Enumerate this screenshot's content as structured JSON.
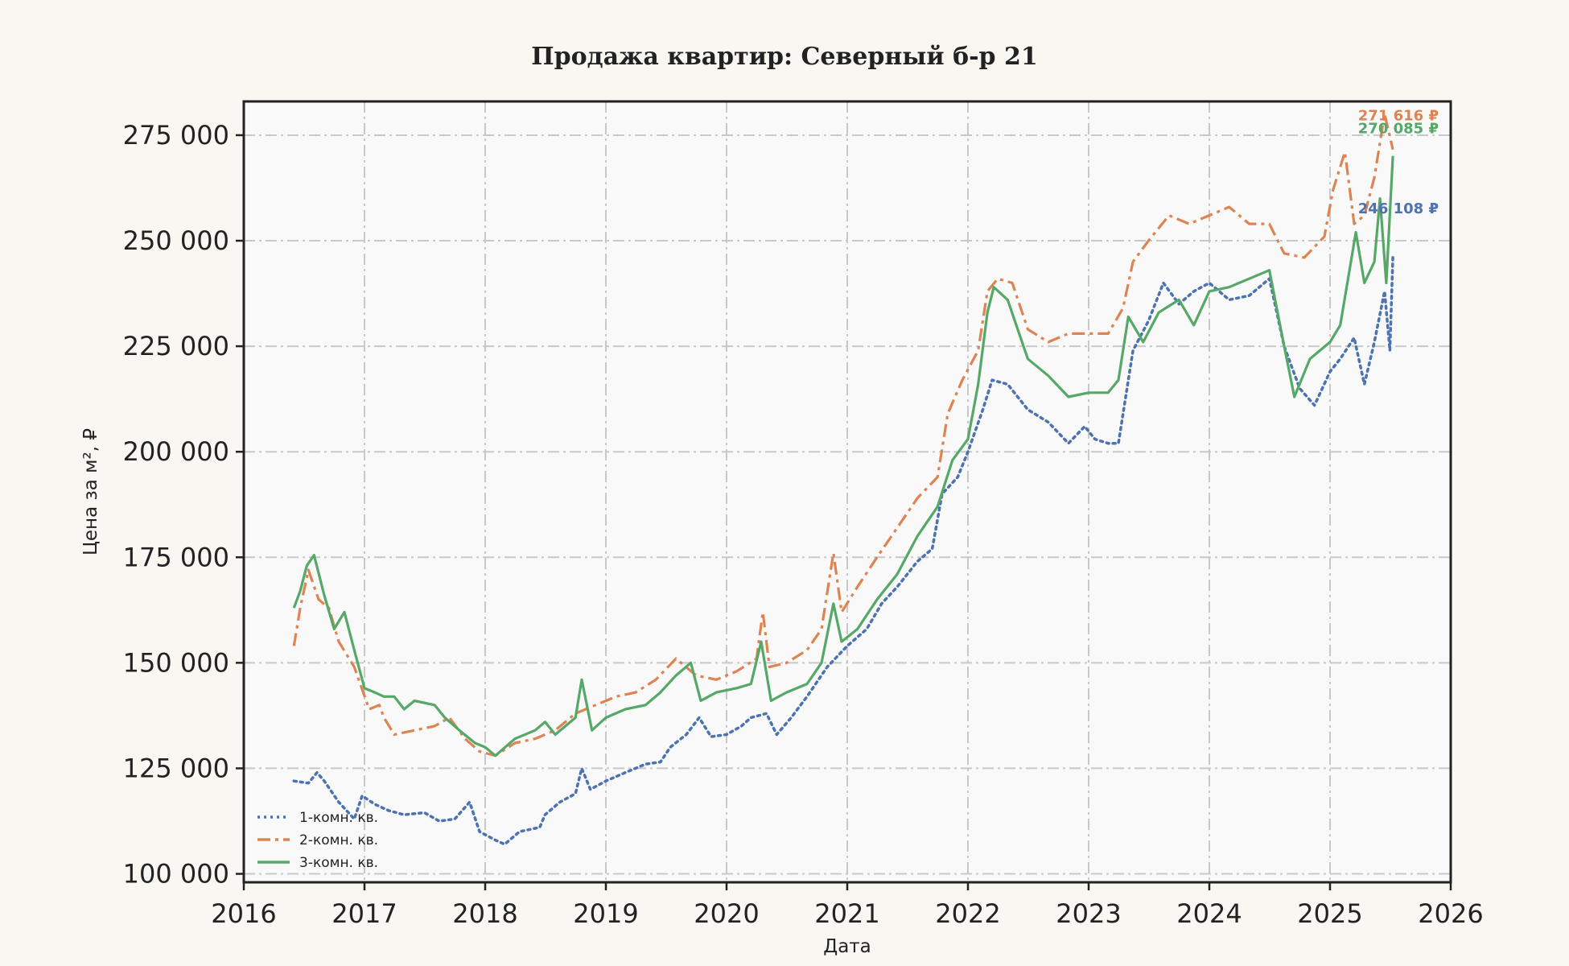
{
  "chart_data": {
    "type": "line",
    "title": "Продажа квартир: Северный б-р 21",
    "xlabel": "Дата",
    "ylabel": "Цена за м², ₽",
    "xlim": [
      2016,
      2026
    ],
    "ylim": [
      98000,
      283000
    ],
    "x_ticks": [
      "2016",
      "2017",
      "2018",
      "2019",
      "2020",
      "2021",
      "2022",
      "2023",
      "2024",
      "2025",
      "2026"
    ],
    "y_ticks": [
      100000,
      125000,
      150000,
      175000,
      200000,
      225000,
      250000,
      275000
    ],
    "y_tick_labels": [
      "100 000",
      "125 000",
      "150 000",
      "175 000",
      "200 000",
      "225 000",
      "250 000",
      "275 000"
    ],
    "grid": true,
    "legend_position": "lower-left",
    "series": [
      {
        "name": "1-комн. кв.",
        "color": "#4c72b0",
        "dash": "dotted",
        "end_label": "246 108 ₽",
        "points": [
          [
            "2016-06-01",
            122000
          ],
          [
            "2016-07-15",
            121500
          ],
          [
            "2016-08-10",
            124000
          ],
          [
            "2016-09-01",
            122000
          ],
          [
            "2016-10-15",
            117000
          ],
          [
            "2016-12-01",
            113000
          ],
          [
            "2016-12-25",
            118500
          ],
          [
            "2017-02-01",
            116500
          ],
          [
            "2017-03-15",
            115000
          ],
          [
            "2017-05-01",
            114000
          ],
          [
            "2017-07-01",
            114500
          ],
          [
            "2017-08-15",
            112500
          ],
          [
            "2017-10-01",
            113000
          ],
          [
            "2017-11-15",
            117000
          ],
          [
            "2017-12-15",
            110000
          ],
          [
            "2018-02-01",
            108000
          ],
          [
            "2018-03-01",
            107000
          ],
          [
            "2018-04-15",
            110000
          ],
          [
            "2018-06-15",
            111000
          ],
          [
            "2018-07-01",
            114000
          ],
          [
            "2018-08-15",
            117000
          ],
          [
            "2018-10-01",
            119000
          ],
          [
            "2018-10-20",
            125000
          ],
          [
            "2018-11-15",
            120000
          ],
          [
            "2019-01-01",
            122000
          ],
          [
            "2019-03-01",
            124000
          ],
          [
            "2019-05-01",
            126000
          ],
          [
            "2019-06-15",
            126500
          ],
          [
            "2019-07-15",
            130000
          ],
          [
            "2019-09-01",
            133000
          ],
          [
            "2019-10-10",
            137000
          ],
          [
            "2019-11-15",
            132500
          ],
          [
            "2020-01-01",
            133000
          ],
          [
            "2020-02-15",
            135000
          ],
          [
            "2020-03-15",
            137000
          ],
          [
            "2020-05-01",
            138000
          ],
          [
            "2020-06-01",
            133000
          ],
          [
            "2020-07-15",
            137000
          ],
          [
            "2020-09-01",
            142000
          ],
          [
            "2020-11-01",
            149000
          ],
          [
            "2021-01-01",
            154000
          ],
          [
            "2021-03-01",
            158000
          ],
          [
            "2021-04-15",
            164000
          ],
          [
            "2021-06-01",
            168000
          ],
          [
            "2021-08-01",
            174000
          ],
          [
            "2021-09-15",
            177000
          ],
          [
            "2021-10-15",
            190000
          ],
          [
            "2021-12-01",
            194000
          ],
          [
            "2022-01-01",
            200000
          ],
          [
            "2022-02-15",
            210000
          ],
          [
            "2022-03-15",
            217000
          ],
          [
            "2022-05-01",
            216000
          ],
          [
            "2022-07-01",
            210000
          ],
          [
            "2022-09-01",
            207000
          ],
          [
            "2022-11-01",
            202000
          ],
          [
            "2022-12-20",
            206000
          ],
          [
            "2023-01-20",
            203000
          ],
          [
            "2023-03-01",
            202000
          ],
          [
            "2023-04-01",
            202000
          ],
          [
            "2023-05-15",
            224000
          ],
          [
            "2023-07-01",
            231000
          ],
          [
            "2023-08-15",
            240000
          ],
          [
            "2023-10-01",
            235000
          ],
          [
            "2023-11-15",
            238000
          ],
          [
            "2024-01-01",
            240000
          ],
          [
            "2024-03-01",
            236000
          ],
          [
            "2024-05-01",
            237000
          ],
          [
            "2024-07-01",
            241000
          ],
          [
            "2024-08-15",
            225000
          ],
          [
            "2024-10-01",
            215000
          ],
          [
            "2024-11-15",
            211000
          ],
          [
            "2025-01-01",
            219000
          ],
          [
            "2025-02-01",
            222000
          ],
          [
            "2025-03-15",
            227000
          ],
          [
            "2025-04-15",
            216000
          ],
          [
            "2025-05-15",
            226000
          ],
          [
            "2025-06-15",
            238000
          ],
          [
            "2025-07-01",
            224000
          ],
          [
            "2025-07-10",
            246108
          ]
        ]
      },
      {
        "name": "2-комн. кв.",
        "color": "#dd8452",
        "dash": "dashdot",
        "end_label": "271 616 ₽",
        "points": [
          [
            "2016-06-01",
            154000
          ],
          [
            "2016-06-20",
            163000
          ],
          [
            "2016-07-15",
            172000
          ],
          [
            "2016-08-15",
            165000
          ],
          [
            "2016-09-15",
            163000
          ],
          [
            "2016-10-15",
            155000
          ],
          [
            "2016-12-01",
            149000
          ],
          [
            "2017-01-15",
            139000
          ],
          [
            "2017-02-15",
            140000
          ],
          [
            "2017-03-01",
            137000
          ],
          [
            "2017-04-01",
            133000
          ],
          [
            "2017-06-01",
            134000
          ],
          [
            "2017-08-01",
            135000
          ],
          [
            "2017-09-15",
            137000
          ],
          [
            "2017-11-01",
            132000
          ],
          [
            "2017-12-15",
            129000
          ],
          [
            "2018-02-01",
            128000
          ],
          [
            "2018-04-01",
            131000
          ],
          [
            "2018-06-01",
            132000
          ],
          [
            "2018-08-01",
            134000
          ],
          [
            "2018-10-01",
            138000
          ],
          [
            "2018-12-01",
            140000
          ],
          [
            "2019-02-01",
            142000
          ],
          [
            "2019-04-01",
            143000
          ],
          [
            "2019-06-01",
            146000
          ],
          [
            "2019-08-01",
            151000
          ],
          [
            "2019-10-01",
            147000
          ],
          [
            "2019-12-01",
            146000
          ],
          [
            "2020-02-01",
            148000
          ],
          [
            "2020-04-01",
            151000
          ],
          [
            "2020-04-20",
            162000
          ],
          [
            "2020-05-10",
            149000
          ],
          [
            "2020-07-01",
            150000
          ],
          [
            "2020-09-01",
            153000
          ],
          [
            "2020-10-15",
            158000
          ],
          [
            "2020-11-20",
            176000
          ],
          [
            "2020-12-15",
            162000
          ],
          [
            "2021-02-01",
            168000
          ],
          [
            "2021-04-01",
            175000
          ],
          [
            "2021-06-01",
            182000
          ],
          [
            "2021-08-01",
            189000
          ],
          [
            "2021-10-01",
            194000
          ],
          [
            "2021-11-01",
            209000
          ],
          [
            "2021-12-15",
            217000
          ],
          [
            "2022-02-01",
            224000
          ],
          [
            "2022-03-01",
            238000
          ],
          [
            "2022-04-01",
            241000
          ],
          [
            "2022-05-15",
            240000
          ],
          [
            "2022-07-01",
            229000
          ],
          [
            "2022-09-01",
            226000
          ],
          [
            "2022-11-01",
            228000
          ],
          [
            "2023-01-01",
            228000
          ],
          [
            "2023-03-01",
            228000
          ],
          [
            "2023-04-15",
            234000
          ],
          [
            "2023-05-15",
            245000
          ],
          [
            "2023-07-01",
            250000
          ],
          [
            "2023-09-01",
            256000
          ],
          [
            "2023-11-01",
            254000
          ],
          [
            "2024-01-01",
            256000
          ],
          [
            "2024-03-01",
            258000
          ],
          [
            "2024-05-01",
            254000
          ],
          [
            "2024-07-01",
            254000
          ],
          [
            "2024-08-15",
            247000
          ],
          [
            "2024-10-15",
            246000
          ],
          [
            "2024-12-15",
            251000
          ],
          [
            "2025-01-10",
            262000
          ],
          [
            "2025-02-15",
            271000
          ],
          [
            "2025-03-15",
            254000
          ],
          [
            "2025-04-15",
            256000
          ],
          [
            "2025-05-15",
            265000
          ],
          [
            "2025-06-15",
            280000
          ],
          [
            "2025-07-10",
            271616
          ]
        ]
      },
      {
        "name": "3-комн. кв.",
        "color": "#55a868",
        "dash": "solid",
        "end_label": "270 085 ₽",
        "points": [
          [
            "2016-06-01",
            163000
          ],
          [
            "2016-06-20",
            167000
          ],
          [
            "2016-07-10",
            173000
          ],
          [
            "2016-08-01",
            175500
          ],
          [
            "2016-09-01",
            166000
          ],
          [
            "2016-10-01",
            158000
          ],
          [
            "2016-11-01",
            162000
          ],
          [
            "2016-12-01",
            153000
          ],
          [
            "2017-01-01",
            144000
          ],
          [
            "2017-02-01",
            143000
          ],
          [
            "2017-03-01",
            142000
          ],
          [
            "2017-04-01",
            142000
          ],
          [
            "2017-05-01",
            139000
          ],
          [
            "2017-06-01",
            141000
          ],
          [
            "2017-08-01",
            140000
          ],
          [
            "2017-09-01",
            137000
          ],
          [
            "2017-10-15",
            134000
          ],
          [
            "2017-12-01",
            131000
          ],
          [
            "2018-01-01",
            130000
          ],
          [
            "2018-02-01",
            128000
          ],
          [
            "2018-04-01",
            132000
          ],
          [
            "2018-06-01",
            134000
          ],
          [
            "2018-07-01",
            136000
          ],
          [
            "2018-08-01",
            133000
          ],
          [
            "2018-10-01",
            137000
          ],
          [
            "2018-10-20",
            146000
          ],
          [
            "2018-11-20",
            134000
          ],
          [
            "2019-01-01",
            137000
          ],
          [
            "2019-03-01",
            139000
          ],
          [
            "2019-05-01",
            140000
          ],
          [
            "2019-06-15",
            143000
          ],
          [
            "2019-08-01",
            147000
          ],
          [
            "2019-09-15",
            150000
          ],
          [
            "2019-10-15",
            141000
          ],
          [
            "2019-12-01",
            143000
          ],
          [
            "2020-02-01",
            144000
          ],
          [
            "2020-03-15",
            145000
          ],
          [
            "2020-04-15",
            155000
          ],
          [
            "2020-05-15",
            141000
          ],
          [
            "2020-07-01",
            143000
          ],
          [
            "2020-09-01",
            145000
          ],
          [
            "2020-10-15",
            150000
          ],
          [
            "2020-11-20",
            164000
          ],
          [
            "2020-12-15",
            155000
          ],
          [
            "2021-02-01",
            158000
          ],
          [
            "2021-04-01",
            165000
          ],
          [
            "2021-06-01",
            171000
          ],
          [
            "2021-08-01",
            180000
          ],
          [
            "2021-10-01",
            187000
          ],
          [
            "2021-11-15",
            198000
          ],
          [
            "2022-01-01",
            203000
          ],
          [
            "2022-02-01",
            216000
          ],
          [
            "2022-03-01",
            233000
          ],
          [
            "2022-03-20",
            239000
          ],
          [
            "2022-05-01",
            236000
          ],
          [
            "2022-07-01",
            222000
          ],
          [
            "2022-09-01",
            218000
          ],
          [
            "2022-11-01",
            213000
          ],
          [
            "2023-01-01",
            214000
          ],
          [
            "2023-03-01",
            214000
          ],
          [
            "2023-04-01",
            217000
          ],
          [
            "2023-05-01",
            232000
          ],
          [
            "2023-06-15",
            226000
          ],
          [
            "2023-08-01",
            233000
          ],
          [
            "2023-10-01",
            236000
          ],
          [
            "2023-11-15",
            230000
          ],
          [
            "2024-01-01",
            238000
          ],
          [
            "2024-03-01",
            239000
          ],
          [
            "2024-05-01",
            241000
          ],
          [
            "2024-07-01",
            243000
          ],
          [
            "2024-08-15",
            225000
          ],
          [
            "2024-09-15",
            213000
          ],
          [
            "2024-11-01",
            222000
          ],
          [
            "2025-01-01",
            226000
          ],
          [
            "2025-02-01",
            230000
          ],
          [
            "2025-03-01",
            243000
          ],
          [
            "2025-03-20",
            252000
          ],
          [
            "2025-04-15",
            240000
          ],
          [
            "2025-05-15",
            245000
          ],
          [
            "2025-06-01",
            260000
          ],
          [
            "2025-06-20",
            240000
          ],
          [
            "2025-07-10",
            270085
          ]
        ]
      }
    ]
  }
}
